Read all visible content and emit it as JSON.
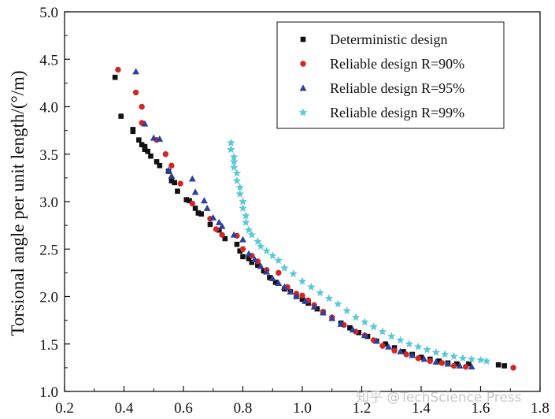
{
  "chart_data": {
    "type": "scatter",
    "title": "",
    "xlabel": "",
    "ylabel": "Torsional angle per unit length/(°/m)",
    "xlim": [
      0.2,
      1.8
    ],
    "ylim": [
      1.0,
      5.0
    ],
    "x_ticks": [
      "0.2",
      "0.4",
      "0.6",
      "0.8",
      "1.0",
      "1.2",
      "1.4",
      "1.6",
      "1.8"
    ],
    "y_ticks": [
      "1.0",
      "1.5",
      "2.0",
      "2.5",
      "3.0",
      "3.5",
      "4.0",
      "4.5",
      "5.0"
    ],
    "grid": false,
    "legend_position": "top-right",
    "series": [
      {
        "name": "Deterministic design",
        "marker": "square",
        "color": "#111111",
        "points": [
          [
            0.37,
            4.31
          ],
          [
            0.39,
            3.9
          ],
          [
            0.43,
            3.76
          ],
          [
            0.43,
            3.74
          ],
          [
            0.45,
            3.65
          ],
          [
            0.46,
            3.6
          ],
          [
            0.47,
            3.58
          ],
          [
            0.47,
            3.55
          ],
          [
            0.48,
            3.53
          ],
          [
            0.49,
            3.48
          ],
          [
            0.51,
            3.42
          ],
          [
            0.52,
            3.38
          ],
          [
            0.55,
            3.32
          ],
          [
            0.56,
            3.22
          ],
          [
            0.57,
            3.2
          ],
          [
            0.58,
            3.11
          ],
          [
            0.61,
            3.02
          ],
          [
            0.62,
            3.01
          ],
          [
            0.64,
            2.93
          ],
          [
            0.65,
            2.88
          ],
          [
            0.66,
            2.87
          ],
          [
            0.69,
            2.76
          ],
          [
            0.72,
            2.7
          ],
          [
            0.74,
            2.61
          ],
          [
            0.78,
            2.55
          ],
          [
            0.79,
            2.48
          ],
          [
            0.8,
            2.42
          ],
          [
            0.82,
            2.4
          ],
          [
            0.83,
            2.36
          ],
          [
            0.85,
            2.33
          ],
          [
            0.87,
            2.27
          ],
          [
            0.89,
            2.2
          ],
          [
            0.91,
            2.15
          ],
          [
            0.94,
            2.08
          ],
          [
            0.96,
            2.05
          ],
          [
            0.98,
            2.01
          ],
          [
            1.0,
            1.97
          ],
          [
            1.02,
            1.93
          ],
          [
            1.05,
            1.87
          ],
          [
            1.07,
            1.83
          ],
          [
            1.1,
            1.77
          ],
          [
            1.13,
            1.72
          ],
          [
            1.16,
            1.67
          ],
          [
            1.19,
            1.62
          ],
          [
            1.22,
            1.58
          ],
          [
            1.25,
            1.53
          ],
          [
            1.28,
            1.5
          ],
          [
            1.31,
            1.46
          ],
          [
            1.34,
            1.42
          ],
          [
            1.37,
            1.39
          ],
          [
            1.4,
            1.36
          ],
          [
            1.43,
            1.34
          ],
          [
            1.46,
            1.32
          ],
          [
            1.49,
            1.3
          ],
          [
            1.52,
            1.29
          ],
          [
            1.56,
            1.29
          ],
          [
            1.66,
            1.28
          ],
          [
            1.68,
            1.27
          ]
        ]
      },
      {
        "name": "Reliable design R=90%",
        "marker": "circle",
        "color": "#d32626",
        "points": [
          [
            0.38,
            4.39
          ],
          [
            0.44,
            4.15
          ],
          [
            0.46,
            4.0
          ],
          [
            0.46,
            3.83
          ],
          [
            0.51,
            3.65
          ],
          [
            0.54,
            3.5
          ],
          [
            0.56,
            3.38
          ],
          [
            0.59,
            3.19
          ],
          [
            0.63,
            2.98
          ],
          [
            0.69,
            2.82
          ],
          [
            0.71,
            2.71
          ],
          [
            0.73,
            2.65
          ],
          [
            0.78,
            2.64
          ],
          [
            0.8,
            2.5
          ],
          [
            0.83,
            2.43
          ],
          [
            0.85,
            2.37
          ],
          [
            0.88,
            2.28
          ],
          [
            0.92,
            2.25
          ],
          [
            0.95,
            2.1
          ],
          [
            0.98,
            2.03
          ],
          [
            1.0,
            2.01
          ],
          [
            1.02,
            1.96
          ],
          [
            1.04,
            1.91
          ],
          [
            1.07,
            1.84
          ],
          [
            1.1,
            1.78
          ],
          [
            1.14,
            1.7
          ],
          [
            1.18,
            1.63
          ],
          [
            1.21,
            1.59
          ],
          [
            1.24,
            1.54
          ],
          [
            1.27,
            1.48
          ],
          [
            1.31,
            1.43
          ],
          [
            1.35,
            1.39
          ],
          [
            1.39,
            1.35
          ],
          [
            1.43,
            1.32
          ],
          [
            1.47,
            1.3
          ],
          [
            1.51,
            1.27
          ],
          [
            1.55,
            1.26
          ],
          [
            1.71,
            1.25
          ]
        ]
      },
      {
        "name": "Reliable design R=95%",
        "marker": "triangle",
        "color": "#2e3f9c",
        "points": [
          [
            0.44,
            4.37
          ],
          [
            0.47,
            3.82
          ],
          [
            0.5,
            3.67
          ],
          [
            0.52,
            3.66
          ],
          [
            0.55,
            3.33
          ],
          [
            0.56,
            3.27
          ],
          [
            0.63,
            3.24
          ],
          [
            0.64,
            3.1
          ],
          [
            0.67,
            3.01
          ],
          [
            0.68,
            2.93
          ],
          [
            0.7,
            2.83
          ],
          [
            0.72,
            2.78
          ],
          [
            0.73,
            2.74
          ],
          [
            0.77,
            2.65
          ],
          [
            0.8,
            2.6
          ],
          [
            0.82,
            2.45
          ],
          [
            0.84,
            2.39
          ],
          [
            0.86,
            2.32
          ],
          [
            0.88,
            2.26
          ],
          [
            0.9,
            2.19
          ],
          [
            0.92,
            2.14
          ],
          [
            0.94,
            2.1
          ],
          [
            0.96,
            2.05
          ],
          [
            0.98,
            2.0
          ],
          [
            1.01,
            1.95
          ],
          [
            1.04,
            1.89
          ],
          [
            1.07,
            1.83
          ],
          [
            1.1,
            1.77
          ],
          [
            1.13,
            1.71
          ],
          [
            1.17,
            1.65
          ],
          [
            1.21,
            1.59
          ],
          [
            1.25,
            1.53
          ],
          [
            1.29,
            1.47
          ],
          [
            1.33,
            1.42
          ],
          [
            1.37,
            1.38
          ],
          [
            1.41,
            1.34
          ],
          [
            1.45,
            1.31
          ],
          [
            1.49,
            1.29
          ],
          [
            1.53,
            1.27
          ],
          [
            1.57,
            1.26
          ]
        ]
      },
      {
        "name": "Reliable design R=99%",
        "marker": "star",
        "color": "#5bc8d6",
        "points": [
          [
            0.76,
            3.62
          ],
          [
            0.76,
            3.55
          ],
          [
            0.77,
            3.47
          ],
          [
            0.77,
            3.42
          ],
          [
            0.77,
            3.36
          ],
          [
            0.78,
            3.3
          ],
          [
            0.78,
            3.22
          ],
          [
            0.79,
            3.15
          ],
          [
            0.79,
            3.08
          ],
          [
            0.8,
            3.0
          ],
          [
            0.8,
            2.93
          ],
          [
            0.81,
            2.85
          ],
          [
            0.81,
            2.78
          ],
          [
            0.82,
            2.7
          ],
          [
            0.83,
            2.65
          ],
          [
            0.85,
            2.58
          ],
          [
            0.86,
            2.53
          ],
          [
            0.88,
            2.48
          ],
          [
            0.9,
            2.43
          ],
          [
            0.92,
            2.38
          ],
          [
            0.94,
            2.3
          ],
          [
            0.97,
            2.24
          ],
          [
            1.0,
            2.16
          ],
          [
            1.03,
            2.1
          ],
          [
            1.06,
            2.04
          ],
          [
            1.09,
            1.98
          ],
          [
            1.12,
            1.92
          ],
          [
            1.15,
            1.85
          ],
          [
            1.18,
            1.78
          ],
          [
            1.21,
            1.73
          ],
          [
            1.24,
            1.68
          ],
          [
            1.27,
            1.63
          ],
          [
            1.3,
            1.58
          ],
          [
            1.33,
            1.54
          ],
          [
            1.36,
            1.5
          ],
          [
            1.39,
            1.47
          ],
          [
            1.42,
            1.44
          ],
          [
            1.45,
            1.41
          ],
          [
            1.48,
            1.39
          ],
          [
            1.51,
            1.37
          ],
          [
            1.54,
            1.35
          ],
          [
            1.57,
            1.34
          ],
          [
            1.6,
            1.33
          ],
          [
            1.62,
            1.32
          ]
        ]
      }
    ]
  },
  "watermark": "知乎 @TechScience Press"
}
